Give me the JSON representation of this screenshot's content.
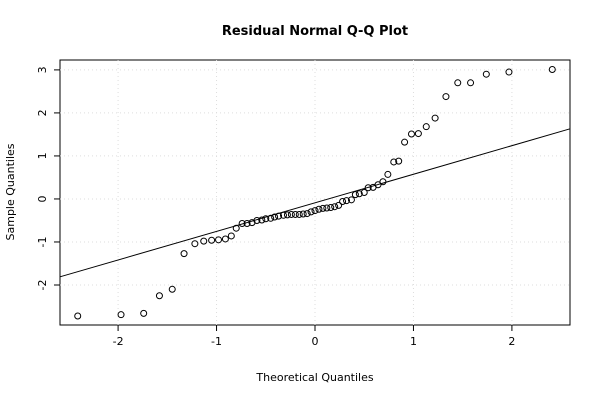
{
  "chart_data": {
    "type": "scatter",
    "title": "Residual Normal Q-Q Plot",
    "x_label": "Theoretical Quantiles",
    "y_label": "Sample Quantiles",
    "x": [
      -2.41,
      -1.97,
      -1.74,
      -1.58,
      -1.45,
      -1.33,
      -1.22,
      -1.13,
      -1.05,
      -0.98,
      -0.91,
      -0.85,
      -0.8,
      -0.74,
      -0.69,
      -0.64,
      -0.59,
      -0.54,
      -0.5,
      -0.45,
      -0.41,
      -0.37,
      -0.32,
      -0.28,
      -0.24,
      -0.2,
      -0.16,
      -0.12,
      -0.08,
      -0.04,
      0,
      0.04,
      0.08,
      0.12,
      0.16,
      0.2,
      0.24,
      0.28,
      0.32,
      0.37,
      0.41,
      0.45,
      0.5,
      0.54,
      0.59,
      0.64,
      0.69,
      0.74,
      0.8,
      0.85,
      0.91,
      0.98,
      1.05,
      1.13,
      1.22,
      1.33,
      1.45,
      1.58,
      1.74,
      1.97,
      2.41
    ],
    "values": [
      -2.72,
      -2.69,
      -2.66,
      -2.25,
      -2.1,
      -1.27,
      -1.04,
      -0.98,
      -0.96,
      -0.95,
      -0.93,
      -0.86,
      -0.68,
      -0.57,
      -0.57,
      -0.55,
      -0.5,
      -0.49,
      -0.46,
      -0.45,
      -0.42,
      -0.4,
      -0.38,
      -0.37,
      -0.36,
      -0.36,
      -0.36,
      -0.35,
      -0.34,
      -0.3,
      -0.27,
      -0.24,
      -0.22,
      -0.21,
      -0.2,
      -0.18,
      -0.15,
      -0.06,
      -0.04,
      -0.02,
      0.1,
      0.12,
      0.15,
      0.26,
      0.27,
      0.33,
      0.4,
      0.57,
      0.86,
      0.88,
      1.32,
      1.51,
      1.52,
      1.68,
      1.88,
      2.38,
      2.7,
      2.7,
      2.9,
      2.95,
      3.01
    ],
    "color": "#000000",
    "reference_line": {
      "x": [
        -2.59,
        2.59
      ],
      "y": [
        -1.81,
        1.63
      ],
      "color": "#000000"
    },
    "xlim": [
      -2.59,
      2.59
    ],
    "ylim": [
      -2.93,
      3.23
    ],
    "xticks": [
      -2,
      -1,
      0,
      1,
      2
    ],
    "yticks": [
      -2,
      -1,
      0,
      1,
      2,
      3
    ],
    "grid": true
  }
}
